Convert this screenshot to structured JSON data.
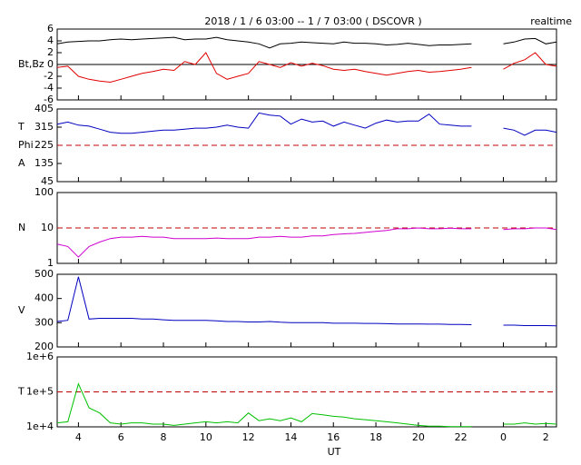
{
  "title": "2018 / 1 / 6  03:00 -- 1 / 7  03:00 ( DSCOVR )",
  "status": "realtime",
  "time_axis": {
    "label": "UT",
    "values": [
      3,
      3.5,
      4,
      4.5,
      5,
      5.5,
      6,
      6.5,
      7,
      7.5,
      8,
      8.5,
      9,
      9.5,
      10,
      10.5,
      11,
      11.5,
      12,
      12.5,
      13,
      13.5,
      14,
      14.5,
      15,
      15.5,
      16,
      16.5,
      17,
      17.5,
      18,
      18.5,
      19,
      19.5,
      20,
      20.5,
      21,
      21.5,
      22,
      22.5,
      23,
      23.5,
      24,
      24.5,
      25,
      25.5,
      26,
      26.5
    ],
    "xlim": [
      3,
      26.5
    ],
    "xticks": [
      4,
      6,
      8,
      10,
      12,
      14,
      16,
      18,
      20,
      22,
      {
        "value": 24,
        "label": "0"
      },
      {
        "value": 26,
        "label": "2"
      }
    ]
  },
  "chart_data": [
    {
      "type": "line",
      "ylabel": [
        "Bt,Bz"
      ],
      "ylim": [
        -6,
        6
      ],
      "yticks": [
        -6,
        -4,
        -2,
        0,
        2,
        4,
        6
      ],
      "ref_lines": [
        {
          "value": 0,
          "color": "#000000",
          "dashed": false
        }
      ],
      "series": [
        {
          "color": "#000000",
          "values": [
            3.5,
            3.8,
            3.9,
            4,
            4,
            4.2,
            4.3,
            4.2,
            4.3,
            4.4,
            4.5,
            4.6,
            4.2,
            4.3,
            4.3,
            4.6,
            4.2,
            4.0,
            3.8,
            3.5,
            2.8,
            3.5,
            3.6,
            3.8,
            3.7,
            3.6,
            3.5,
            3.8,
            3.6,
            3.6,
            3.5,
            3.3,
            3.4,
            3.6,
            3.4,
            3.2,
            3.3,
            3.3,
            3.4,
            3.5,
            null,
            null,
            3.5,
            3.8,
            4.3,
            4.4,
            3.5,
            3.8
          ]
        },
        {
          "color": "#e00000",
          "values": [
            -0.5,
            -0.3,
            -2,
            -2.5,
            -2.8,
            -3,
            -2.5,
            -2,
            -1.5,
            -1.2,
            -0.8,
            -1,
            0.5,
            0,
            2,
            -1.5,
            -2.5,
            -2,
            -1.5,
            0.5,
            0,
            -0.5,
            0.3,
            -0.3,
            0.2,
            -0.2,
            -0.8,
            -1,
            -0.8,
            -1.2,
            -1.5,
            -1.8,
            -1.5,
            -1.2,
            -1,
            -1.3,
            -1.2,
            -1,
            -0.8,
            -0.5,
            null,
            null,
            -0.8,
            0.2,
            0.8,
            2,
            0,
            -0.3
          ]
        }
      ]
    },
    {
      "type": "line",
      "ylabel": [
        "T",
        "Phi",
        "A"
      ],
      "ylim": [
        45,
        405
      ],
      "yticks": [
        45,
        135,
        225,
        315,
        405
      ],
      "ref_lines": [
        {
          "value": 225,
          "color": "#c00000",
          "dashed": true
        }
      ],
      "series": [
        {
          "color": "#0000c0",
          "values": [
            330,
            340,
            325,
            320,
            305,
            290,
            285,
            285,
            290,
            295,
            300,
            300,
            305,
            310,
            310,
            315,
            325,
            315,
            310,
            385,
            375,
            370,
            330,
            355,
            340,
            345,
            320,
            340,
            325,
            310,
            335,
            350,
            340,
            345,
            345,
            380,
            330,
            325,
            320,
            320,
            null,
            null,
            310,
            300,
            275,
            300,
            300,
            290
          ]
        }
      ]
    },
    {
      "type": "line",
      "log": true,
      "ylabel": [
        "N"
      ],
      "ylim": [
        1,
        100
      ],
      "yticks": [
        1,
        10,
        100
      ],
      "ref_lines": [
        {
          "value": 10,
          "color": "#c00000",
          "dashed": true
        }
      ],
      "series": [
        {
          "color": "#d000d0",
          "values": [
            3.5,
            3,
            1.5,
            3,
            4,
            5,
            5.5,
            5.5,
            5.8,
            5.5,
            5.5,
            5,
            5,
            5,
            5,
            5.2,
            5,
            5,
            5,
            5.5,
            5.5,
            5.8,
            5.5,
            5.5,
            6,
            6,
            6.5,
            6.8,
            7,
            7.5,
            8,
            8.5,
            9.5,
            9.5,
            10,
            9.5,
            9.5,
            9.8,
            9.5,
            9.5,
            null,
            null,
            9,
            9.5,
            9.5,
            10,
            10,
            9
          ]
        }
      ]
    },
    {
      "type": "line",
      "ylabel": [
        "V"
      ],
      "ylim": [
        200,
        500
      ],
      "yticks": [
        200,
        300,
        400,
        500
      ],
      "ref_lines": [],
      "series": [
        {
          "color": "#0000c0",
          "values": [
            305,
            310,
            490,
            315,
            318,
            318,
            318,
            318,
            315,
            315,
            312,
            310,
            310,
            310,
            310,
            308,
            305,
            305,
            303,
            303,
            305,
            302,
            300,
            300,
            300,
            300,
            298,
            298,
            298,
            297,
            297,
            296,
            295,
            295,
            295,
            294,
            294,
            293,
            293,
            292,
            null,
            null,
            290,
            290,
            288,
            288,
            288,
            287
          ]
        }
      ]
    },
    {
      "type": "line",
      "log": true,
      "ylabel": [
        "T"
      ],
      "ylim": [
        10000,
        1000000
      ],
      "yticks": [
        {
          "value": 10000,
          "label": "1e+4"
        },
        {
          "value": 100000,
          "label": "1e+5"
        },
        {
          "value": 1000000,
          "label": "1e+6"
        }
      ],
      "ref_lines": [
        {
          "value": 100000,
          "color": "#c00000",
          "dashed": true
        }
      ],
      "series": [
        {
          "color": "#00c000",
          "values": [
            13000,
            14000,
            170000,
            35000,
            25000,
            13000,
            12000,
            13000,
            13000,
            12000,
            12000,
            11000,
            12000,
            13000,
            14000,
            13000,
            14000,
            13000,
            25000,
            15000,
            17000,
            15000,
            18000,
            14000,
            24000,
            22000,
            20000,
            19000,
            17000,
            16000,
            15000,
            14000,
            13000,
            12000,
            11000,
            10500,
            10500,
            10200,
            10200,
            10100,
            null,
            null,
            12000,
            12000,
            13000,
            12000,
            12500,
            12000
          ]
        }
      ]
    }
  ]
}
